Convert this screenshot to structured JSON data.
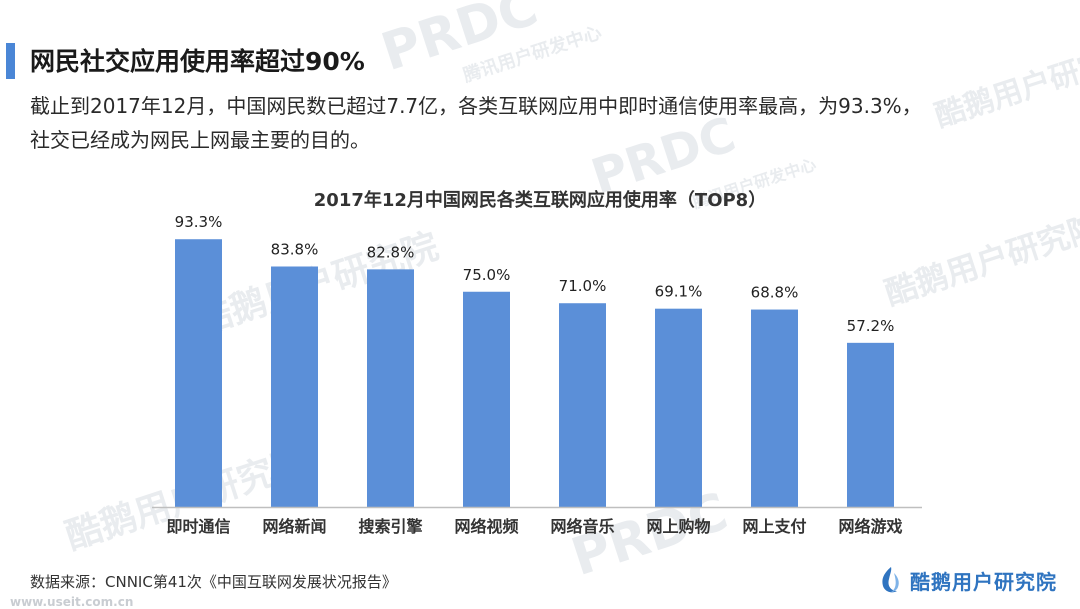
{
  "header": {
    "title": "网民社交应用使用率超过90%",
    "subtitle_line1": "截止到2017年12月，中国网民数已超过7.7亿，各类互联网应用中即时通信使用率最高，为93.3%，",
    "subtitle_line2": "社交已经成为网民上网最主要的目的。"
  },
  "chart_data": {
    "type": "bar",
    "title": "2017年12月中国网民各类互联网应用使用率（TOP8）",
    "categories": [
      "即时通信",
      "网络新闻",
      "搜索引擎",
      "网络视频",
      "网络音乐",
      "网上购物",
      "网上支付",
      "网络游戏"
    ],
    "values": [
      93.3,
      83.8,
      82.8,
      75.0,
      71.0,
      69.1,
      68.8,
      57.2
    ],
    "value_labels": [
      "93.3%",
      "83.8%",
      "82.8%",
      "75.0%",
      "71.0%",
      "69.1%",
      "68.8%",
      "57.2%"
    ],
    "ylim": [
      0,
      100
    ],
    "grid": false,
    "bar_color": "#5b8fd8",
    "axis_color": "#bfbfbf"
  },
  "footer": {
    "source": "数据来源：CNNIC第41次《中国互联网发展状况报告》",
    "brand": "酷鹅用户研究院"
  },
  "watermarks": {
    "brand_cn": "酷鹅用户研究院",
    "brand_en": "PRDC",
    "brand_sub": "腾讯用户研发中心",
    "url": "www.useit.com.cn"
  },
  "colors": {
    "accent": "#4a86d6",
    "brand": "#2f74c0"
  }
}
